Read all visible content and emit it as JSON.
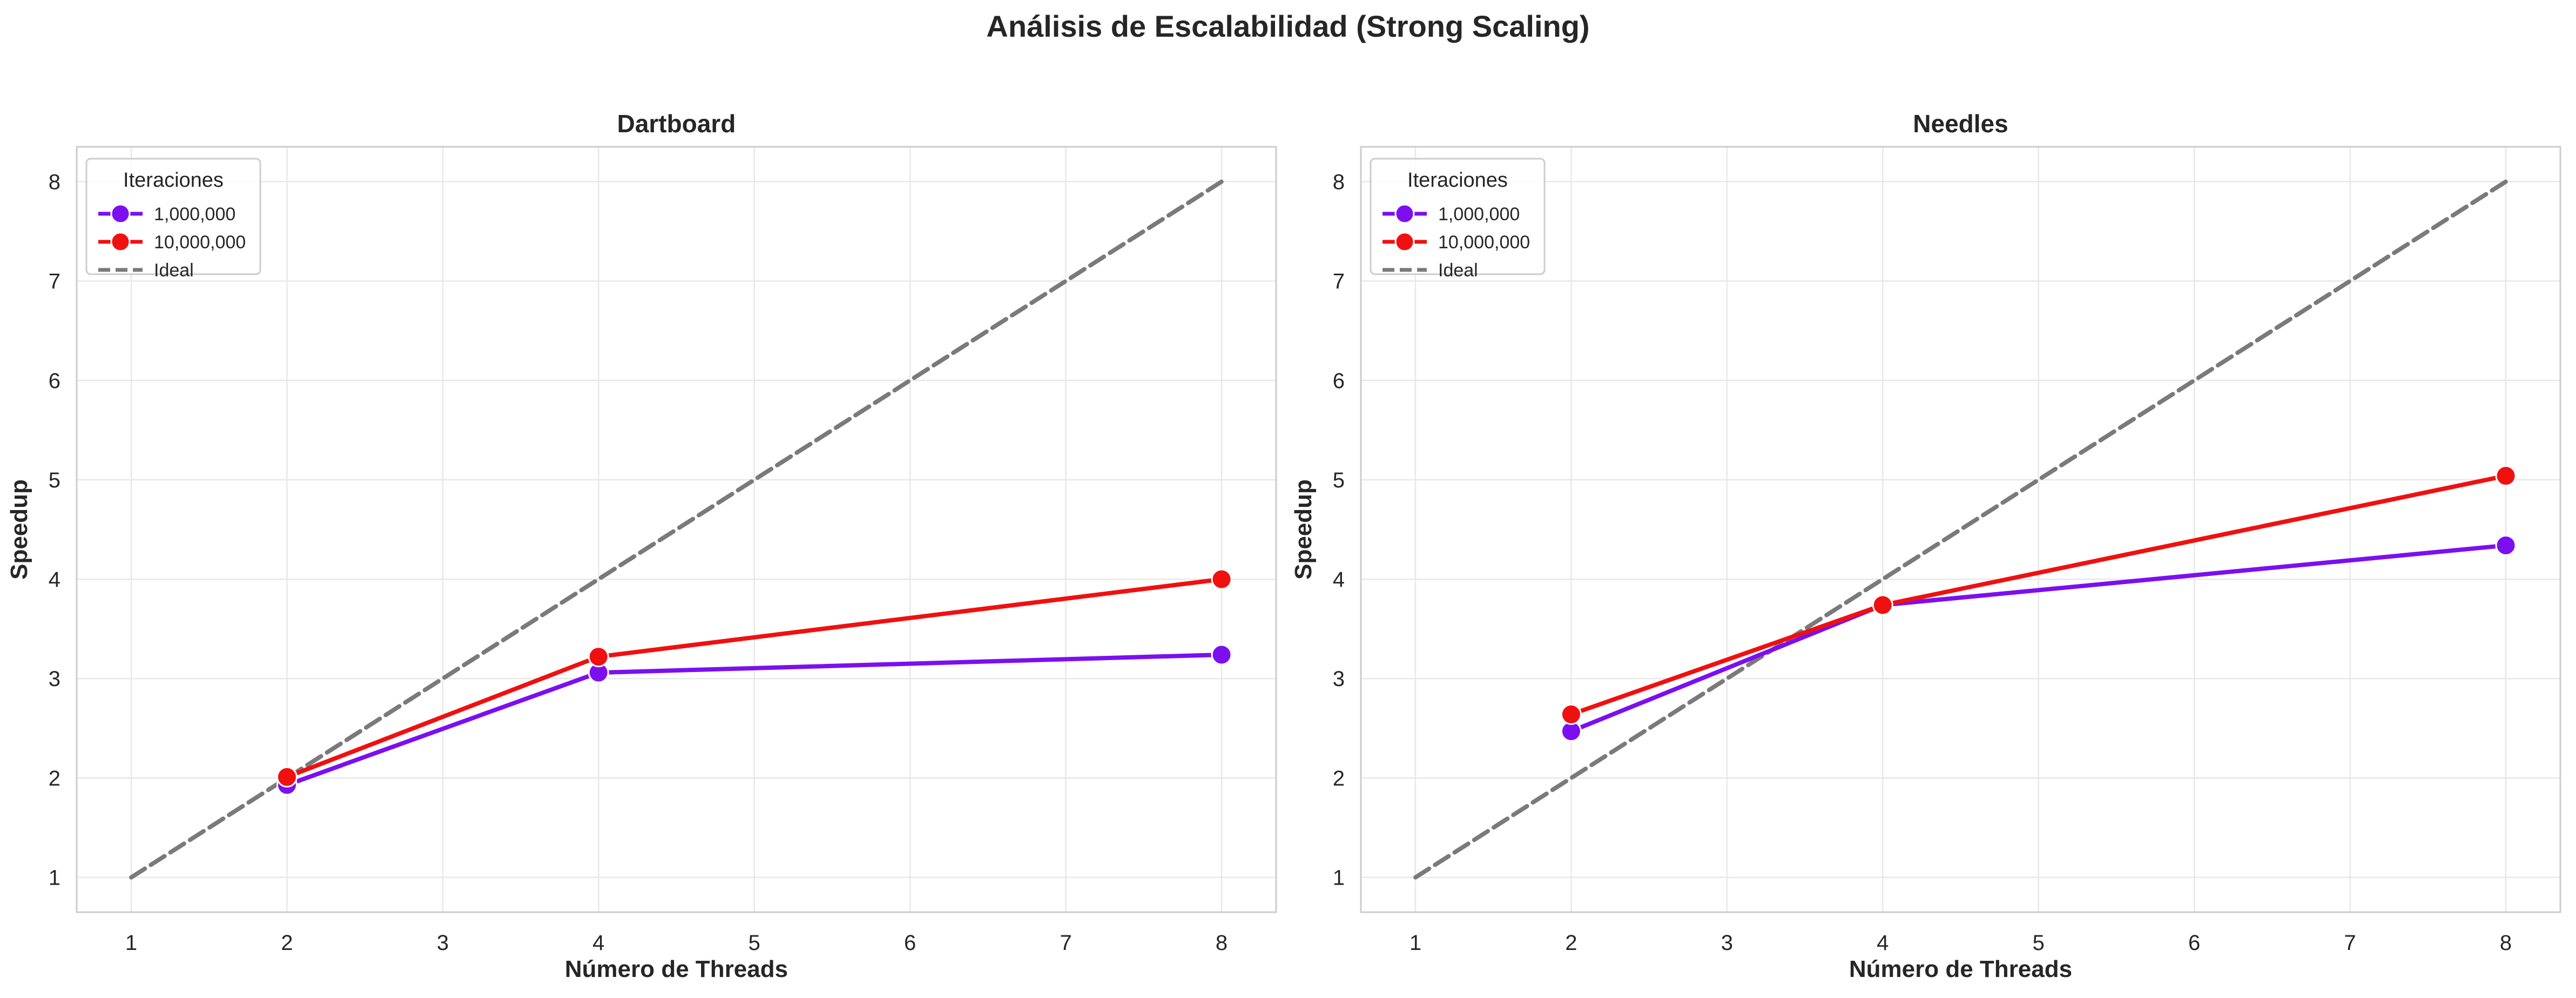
{
  "figure": {
    "suptitle": "Análisis de Escalabilidad (Strong Scaling)"
  },
  "colors": {
    "series_1m": "#7b0ff0",
    "series_10m": "#f01010",
    "ideal": "#7a7a7a",
    "grid": "#e8e8e8",
    "frame": "#cccccc",
    "text": "#262626"
  },
  "chart_data": [
    {
      "type": "line",
      "title": "Dartboard",
      "xlabel": "Número de Threads",
      "ylabel": "Speedup",
      "xlim": [
        0.65,
        8.35
      ],
      "ylim": [
        0.65,
        8.35
      ],
      "xticks": [
        1,
        2,
        3,
        4,
        5,
        6,
        7,
        8
      ],
      "yticks": [
        1,
        2,
        3,
        4,
        5,
        6,
        7,
        8
      ],
      "grid": true,
      "legend": {
        "title": "Iteraciones",
        "placement": "top-left"
      },
      "series": [
        {
          "name": "1,000,000",
          "color_key": "series_1m",
          "style": "solid",
          "marker": "circle",
          "x": [
            2,
            4,
            8
          ],
          "y": [
            1.93,
            3.06,
            3.24
          ]
        },
        {
          "name": "10,000,000",
          "color_key": "series_10m",
          "style": "solid",
          "marker": "circle",
          "x": [
            2,
            4,
            8
          ],
          "y": [
            2.01,
            3.22,
            4.0
          ]
        },
        {
          "name": "Ideal",
          "color_key": "ideal",
          "style": "dashed",
          "marker": "none",
          "x": [
            1,
            8
          ],
          "y": [
            1,
            8
          ]
        }
      ]
    },
    {
      "type": "line",
      "title": "Needles",
      "xlabel": "Número de Threads",
      "ylabel": "Speedup",
      "xlim": [
        0.65,
        8.35
      ],
      "ylim": [
        0.65,
        8.35
      ],
      "xticks": [
        1,
        2,
        3,
        4,
        5,
        6,
        7,
        8
      ],
      "yticks": [
        1,
        2,
        3,
        4,
        5,
        6,
        7,
        8
      ],
      "grid": true,
      "legend": {
        "title": "Iteraciones",
        "placement": "top-left"
      },
      "series": [
        {
          "name": "1,000,000",
          "color_key": "series_1m",
          "style": "solid",
          "marker": "circle",
          "x": [
            2,
            4,
            8
          ],
          "y": [
            2.47,
            3.74,
            4.34
          ]
        },
        {
          "name": "10,000,000",
          "color_key": "series_10m",
          "style": "solid",
          "marker": "circle",
          "x": [
            2,
            4,
            8
          ],
          "y": [
            2.64,
            3.74,
            5.04
          ]
        },
        {
          "name": "Ideal",
          "color_key": "ideal",
          "style": "dashed",
          "marker": "none",
          "x": [
            1,
            8
          ],
          "y": [
            1,
            8
          ]
        }
      ]
    }
  ]
}
